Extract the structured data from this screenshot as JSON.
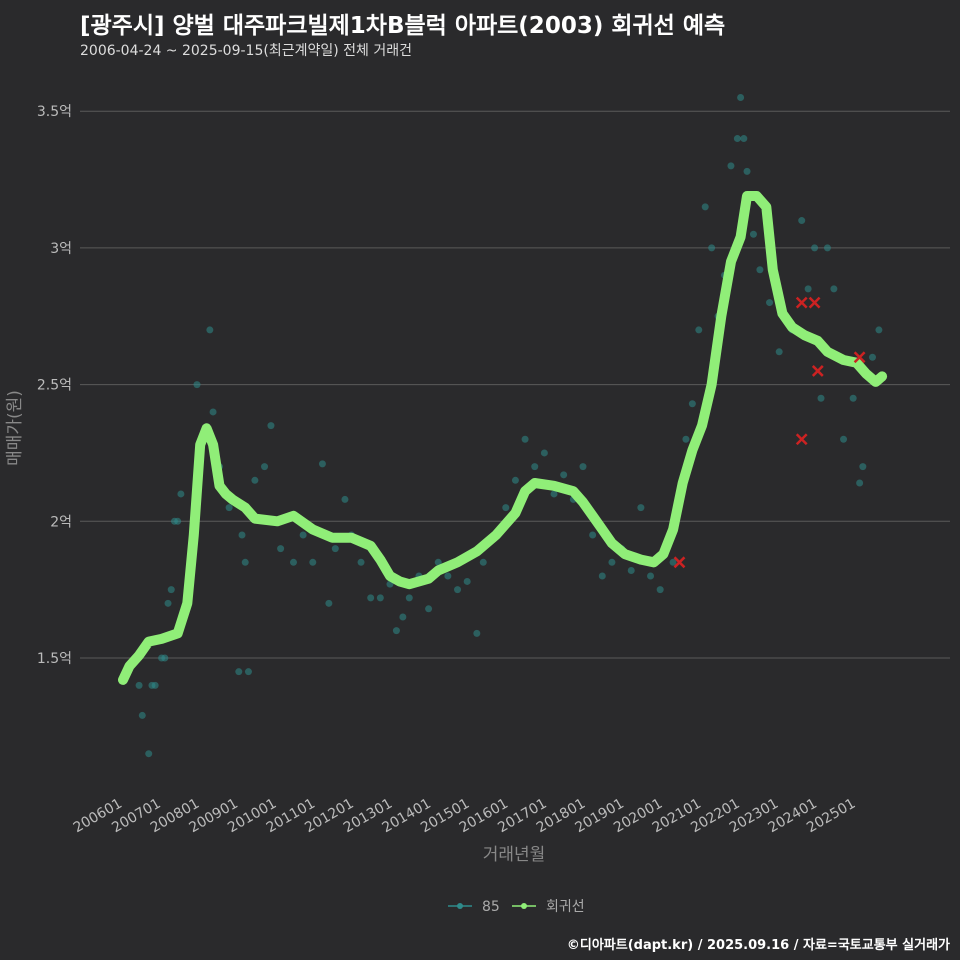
{
  "header": {
    "title": "[광주시] 양벌 대주파크빌제1차B블럭 아파트(2003) 회귀선 예측",
    "subtitle": "2006-04-24 ~ 2025-09-15(최근계약일) 전체 거래건"
  },
  "footer": {
    "credit": "©디아파트(dapt.kr) / 2025.09.16 / 자료=국토교통부 실거래가"
  },
  "colors": {
    "background": "#2a2a2c",
    "grid": "#5a5a5a",
    "scatter": "#2e8b8b",
    "regression": "#90ee78",
    "outlier": "#cc2222"
  },
  "chart_data": {
    "type": "scatter",
    "xlabel": "거래년월",
    "ylabel": "매매가(원)",
    "x_range": [
      "2006-01",
      "2025-12"
    ],
    "ylim": [
      1.0,
      3.6
    ],
    "y_unit": "억",
    "x_ticks": [
      "200601",
      "200701",
      "200801",
      "200901",
      "201001",
      "201101",
      "201201",
      "201301",
      "201401",
      "201501",
      "201601",
      "201701",
      "201801",
      "201901",
      "202001",
      "202101",
      "202201",
      "202301",
      "202401",
      "202501"
    ],
    "y_ticks": [
      {
        "value": 1.5,
        "label": "1.5억"
      },
      {
        "value": 2.0,
        "label": "2억"
      },
      {
        "value": 2.5,
        "label": "2.5억"
      },
      {
        "value": 3.0,
        "label": "3억"
      },
      {
        "value": 3.5,
        "label": "3.5억"
      }
    ],
    "grid": true,
    "legend": {
      "position": "bottom",
      "items": [
        {
          "label": "85",
          "color": "#2e8b8b"
        },
        {
          "label": "회귀선",
          "color": "#90ee78"
        }
      ]
    },
    "series": [
      {
        "name": "85",
        "kind": "scatter",
        "points": [
          [
            "2006-06",
            1.4
          ],
          [
            "2006-07",
            1.29
          ],
          [
            "2006-09",
            1.15
          ],
          [
            "2006-10",
            1.4
          ],
          [
            "2006-11",
            1.4
          ],
          [
            "2007-01",
            1.5
          ],
          [
            "2007-02",
            1.5
          ],
          [
            "2007-03",
            1.7
          ],
          [
            "2007-04",
            1.75
          ],
          [
            "2007-05",
            2.0
          ],
          [
            "2007-06",
            2.0
          ],
          [
            "2007-07",
            2.1
          ],
          [
            "2007-12",
            2.5
          ],
          [
            "2008-02",
            2.3
          ],
          [
            "2008-04",
            2.7
          ],
          [
            "2008-05",
            2.4
          ],
          [
            "2008-07",
            2.2
          ],
          [
            "2008-10",
            2.05
          ],
          [
            "2009-01",
            1.45
          ],
          [
            "2009-02",
            1.95
          ],
          [
            "2009-03",
            1.85
          ],
          [
            "2009-04",
            1.45
          ],
          [
            "2009-06",
            2.15
          ],
          [
            "2009-09",
            2.2
          ],
          [
            "2009-11",
            2.35
          ],
          [
            "2010-02",
            1.9
          ],
          [
            "2010-06",
            1.85
          ],
          [
            "2010-09",
            1.95
          ],
          [
            "2010-12",
            1.85
          ],
          [
            "2011-03",
            2.21
          ],
          [
            "2011-05",
            1.7
          ],
          [
            "2011-07",
            1.9
          ],
          [
            "2011-10",
            2.08
          ],
          [
            "2011-12",
            1.95
          ],
          [
            "2012-03",
            1.85
          ],
          [
            "2012-06",
            1.72
          ],
          [
            "2012-09",
            1.72
          ],
          [
            "2012-12",
            1.77
          ],
          [
            "2013-02",
            1.6
          ],
          [
            "2013-04",
            1.65
          ],
          [
            "2013-06",
            1.72
          ],
          [
            "2013-09",
            1.8
          ],
          [
            "2013-12",
            1.68
          ],
          [
            "2014-03",
            1.85
          ],
          [
            "2014-06",
            1.8
          ],
          [
            "2014-09",
            1.75
          ],
          [
            "2014-12",
            1.78
          ],
          [
            "2015-03",
            1.59
          ],
          [
            "2015-05",
            1.85
          ],
          [
            "2015-09",
            1.95
          ],
          [
            "2015-12",
            2.05
          ],
          [
            "2016-03",
            2.15
          ],
          [
            "2016-06",
            2.3
          ],
          [
            "2016-09",
            2.2
          ],
          [
            "2016-12",
            2.25
          ],
          [
            "2017-03",
            2.1
          ],
          [
            "2017-06",
            2.17
          ],
          [
            "2017-09",
            2.08
          ],
          [
            "2017-12",
            2.2
          ],
          [
            "2018-03",
            1.95
          ],
          [
            "2018-06",
            1.8
          ],
          [
            "2018-09",
            1.85
          ],
          [
            "2018-12",
            1.9
          ],
          [
            "2019-03",
            1.82
          ],
          [
            "2019-06",
            2.05
          ],
          [
            "2019-09",
            1.8
          ],
          [
            "2019-12",
            1.75
          ],
          [
            "2020-02",
            1.9
          ],
          [
            "2020-04",
            1.85
          ],
          [
            "2020-06",
            2.1
          ],
          [
            "2020-08",
            2.3
          ],
          [
            "2020-10",
            2.43
          ],
          [
            "2020-12",
            2.7
          ],
          [
            "2021-02",
            3.15
          ],
          [
            "2021-04",
            3.0
          ],
          [
            "2021-06",
            2.75
          ],
          [
            "2021-08",
            2.9
          ],
          [
            "2021-10",
            3.3
          ],
          [
            "2021-12",
            3.4
          ],
          [
            "2022-01",
            3.55
          ],
          [
            "2022-02",
            3.4
          ],
          [
            "2022-03",
            3.28
          ],
          [
            "2022-05",
            3.05
          ],
          [
            "2022-07",
            2.92
          ],
          [
            "2022-10",
            2.8
          ],
          [
            "2023-01",
            2.62
          ],
          [
            "2023-05",
            2.7
          ],
          [
            "2023-08",
            3.1
          ],
          [
            "2023-10",
            2.85
          ],
          [
            "2023-12",
            3.0
          ],
          [
            "2024-02",
            2.45
          ],
          [
            "2024-04",
            3.0
          ],
          [
            "2024-06",
            2.85
          ],
          [
            "2024-09",
            2.3
          ],
          [
            "2024-12",
            2.45
          ],
          [
            "2025-02",
            2.14
          ],
          [
            "2025-03",
            2.2
          ],
          [
            "2025-06",
            2.6
          ],
          [
            "2025-08",
            2.7
          ]
        ]
      },
      {
        "name": "회귀선",
        "kind": "line",
        "points": [
          [
            "2006-01",
            1.42
          ],
          [
            "2006-03",
            1.47
          ],
          [
            "2006-06",
            1.51
          ],
          [
            "2006-09",
            1.56
          ],
          [
            "2007-01",
            1.57
          ],
          [
            "2007-06",
            1.59
          ],
          [
            "2007-09",
            1.7
          ],
          [
            "2007-11",
            1.95
          ],
          [
            "2008-01",
            2.28
          ],
          [
            "2008-03",
            2.34
          ],
          [
            "2008-05",
            2.28
          ],
          [
            "2008-07",
            2.13
          ],
          [
            "2008-09",
            2.1
          ],
          [
            "2008-11",
            2.08
          ],
          [
            "2009-03",
            2.05
          ],
          [
            "2009-06",
            2.01
          ],
          [
            "2010-01",
            2.0
          ],
          [
            "2010-06",
            2.02
          ],
          [
            "2010-12",
            1.97
          ],
          [
            "2011-06",
            1.94
          ],
          [
            "2011-12",
            1.94
          ],
          [
            "2012-06",
            1.91
          ],
          [
            "2012-09",
            1.86
          ],
          [
            "2012-12",
            1.8
          ],
          [
            "2013-03",
            1.78
          ],
          [
            "2013-06",
            1.77
          ],
          [
            "2013-12",
            1.79
          ],
          [
            "2014-03",
            1.82
          ],
          [
            "2014-09",
            1.85
          ],
          [
            "2015-03",
            1.89
          ],
          [
            "2015-09",
            1.95
          ],
          [
            "2016-03",
            2.03
          ],
          [
            "2016-06",
            2.11
          ],
          [
            "2016-09",
            2.14
          ],
          [
            "2017-03",
            2.13
          ],
          [
            "2017-09",
            2.11
          ],
          [
            "2017-12",
            2.07
          ],
          [
            "2018-03",
            2.02
          ],
          [
            "2018-06",
            1.97
          ],
          [
            "2018-09",
            1.92
          ],
          [
            "2019-01",
            1.88
          ],
          [
            "2019-06",
            1.86
          ],
          [
            "2019-10",
            1.85
          ],
          [
            "2020-01",
            1.88
          ],
          [
            "2020-04",
            1.97
          ],
          [
            "2020-07",
            2.14
          ],
          [
            "2020-10",
            2.26
          ],
          [
            "2021-01",
            2.35
          ],
          [
            "2021-04",
            2.5
          ],
          [
            "2021-07",
            2.75
          ],
          [
            "2021-10",
            2.95
          ],
          [
            "2022-01",
            3.04
          ],
          [
            "2022-03",
            3.19
          ],
          [
            "2022-06",
            3.19
          ],
          [
            "2022-09",
            3.15
          ],
          [
            "2022-11",
            2.92
          ],
          [
            "2023-02",
            2.76
          ],
          [
            "2023-05",
            2.71
          ],
          [
            "2023-09",
            2.68
          ],
          [
            "2024-01",
            2.66
          ],
          [
            "2024-04",
            2.62
          ],
          [
            "2024-09",
            2.59
          ],
          [
            "2025-01",
            2.58
          ],
          [
            "2025-04",
            2.54
          ],
          [
            "2025-07",
            2.51
          ],
          [
            "2025-09",
            2.53
          ]
        ]
      },
      {
        "name": "",
        "kind": "outlier",
        "points": [
          [
            "2020-06",
            1.85
          ],
          [
            "2023-08",
            2.3
          ],
          [
            "2023-08",
            2.8
          ],
          [
            "2023-12",
            2.8
          ],
          [
            "2024-01",
            2.55
          ],
          [
            "2025-02",
            2.6
          ]
        ]
      }
    ]
  }
}
